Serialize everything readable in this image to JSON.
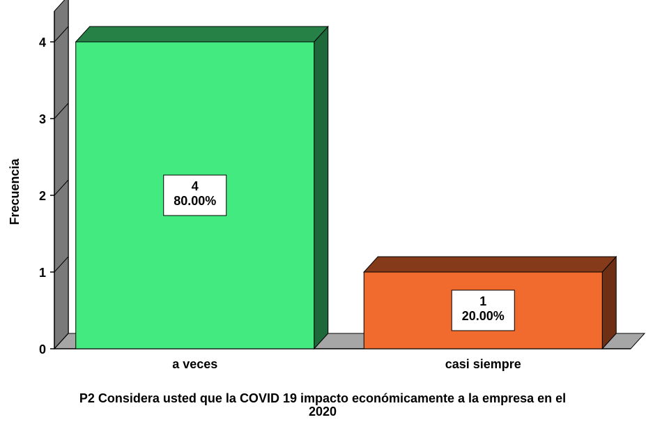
{
  "chart_data": {
    "type": "bar3d",
    "categories": [
      "a veces",
      "casi siempre"
    ],
    "values": [
      4,
      1
    ],
    "percent": [
      80,
      20
    ],
    "percent_labels": [
      "80.00%",
      "20.00%"
    ],
    "colors": [
      "#43ea80",
      "#f26b2e"
    ],
    "ylabel": "Frecuencia",
    "xlabel": "P2 Considera usted que la COVID 19 impacto económicamente a la empresa en el 2020",
    "ylim": [
      0,
      4.4
    ],
    "yticks": [
      0,
      1,
      2,
      3,
      4
    ]
  }
}
